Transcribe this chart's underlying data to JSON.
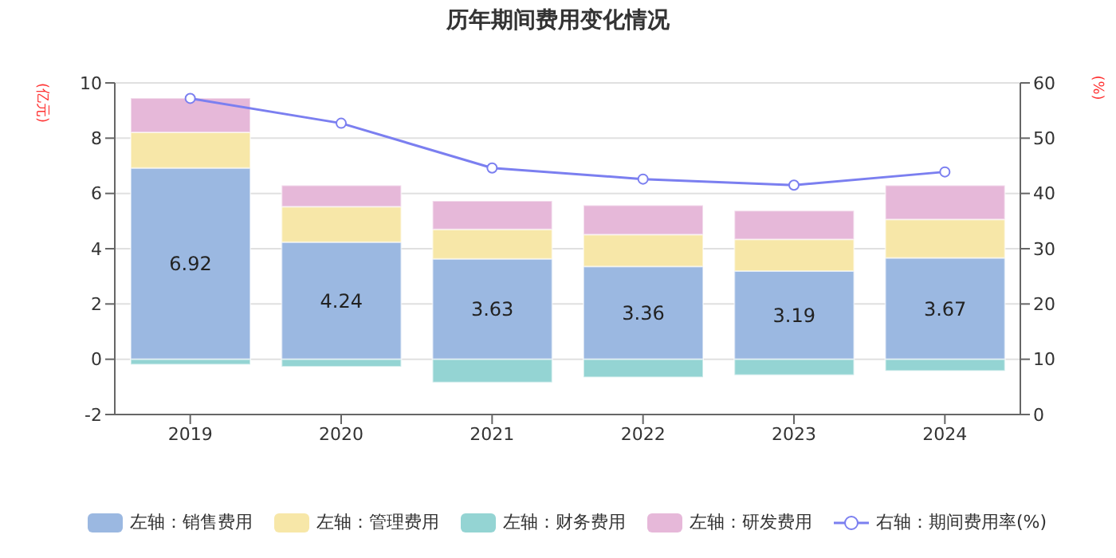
{
  "chart_data": {
    "type": "bar",
    "title": "历年期间费用变化情况",
    "ylabel": "(亿元)",
    "y2label": "(%)",
    "stacked": true,
    "categories": [
      "2019",
      "2020",
      "2021",
      "2022",
      "2023",
      "2024"
    ],
    "series": [
      {
        "name": "左轴：销售费用",
        "color": "#9bb8e1",
        "values": [
          6.92,
          4.24,
          3.63,
          3.36,
          3.19,
          3.67
        ],
        "value_labels": [
          "6.92",
          "4.24",
          "3.63",
          "3.36",
          "3.19",
          "3.67"
        ]
      },
      {
        "name": "左轴：管理费用",
        "color": "#f7e7a8",
        "values": [
          1.29,
          1.28,
          1.07,
          1.15,
          1.15,
          1.39
        ]
      },
      {
        "name": "左轴：财务费用",
        "color": "#94d4d3",
        "values": [
          -0.19,
          -0.27,
          -0.84,
          -0.65,
          -0.57,
          -0.42
        ]
      },
      {
        "name": "左轴：研发费用",
        "color": "#e6b8d9",
        "values": [
          1.24,
          0.77,
          1.03,
          1.06,
          1.04,
          1.23
        ]
      },
      {
        "name": "右轴：期间费用率(%)",
        "type": "line",
        "axis": "y2",
        "color": "#7b7ff0",
        "marker": "circle",
        "values": [
          57.2,
          52.7,
          44.6,
          42.6,
          41.5,
          43.9
        ]
      }
    ],
    "ylim": [
      -2,
      10
    ],
    "yticks": [
      -2,
      0,
      2,
      4,
      6,
      8,
      10
    ],
    "y2lim": [
      0,
      60
    ],
    "y2ticks": [
      0,
      10,
      20,
      30,
      40,
      50,
      60
    ],
    "grid": "y",
    "legend": "bottom"
  }
}
